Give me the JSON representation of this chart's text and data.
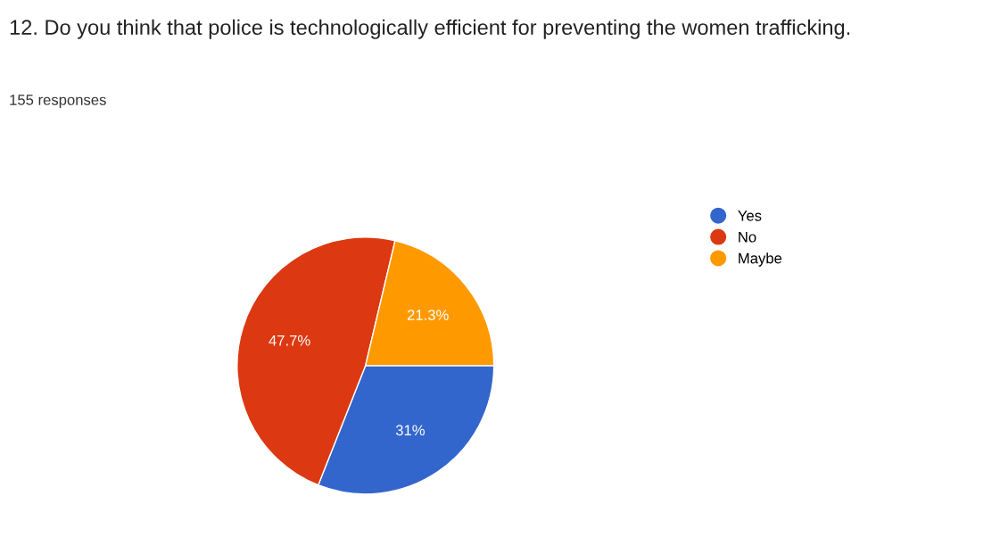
{
  "chart_data": {
    "type": "pie",
    "title": "12. Do you think that police is technologically efficient for preventing the women trafficking.",
    "subtitle": "155 responses",
    "categories": [
      "Yes",
      "No",
      "Maybe"
    ],
    "values": [
      31,
      47.7,
      21.3
    ],
    "colors": [
      "#3366cc",
      "#dc3912",
      "#ff9900"
    ],
    "value_labels": [
      "31%",
      "47.7%",
      "21.3%"
    ],
    "legend": "right"
  }
}
